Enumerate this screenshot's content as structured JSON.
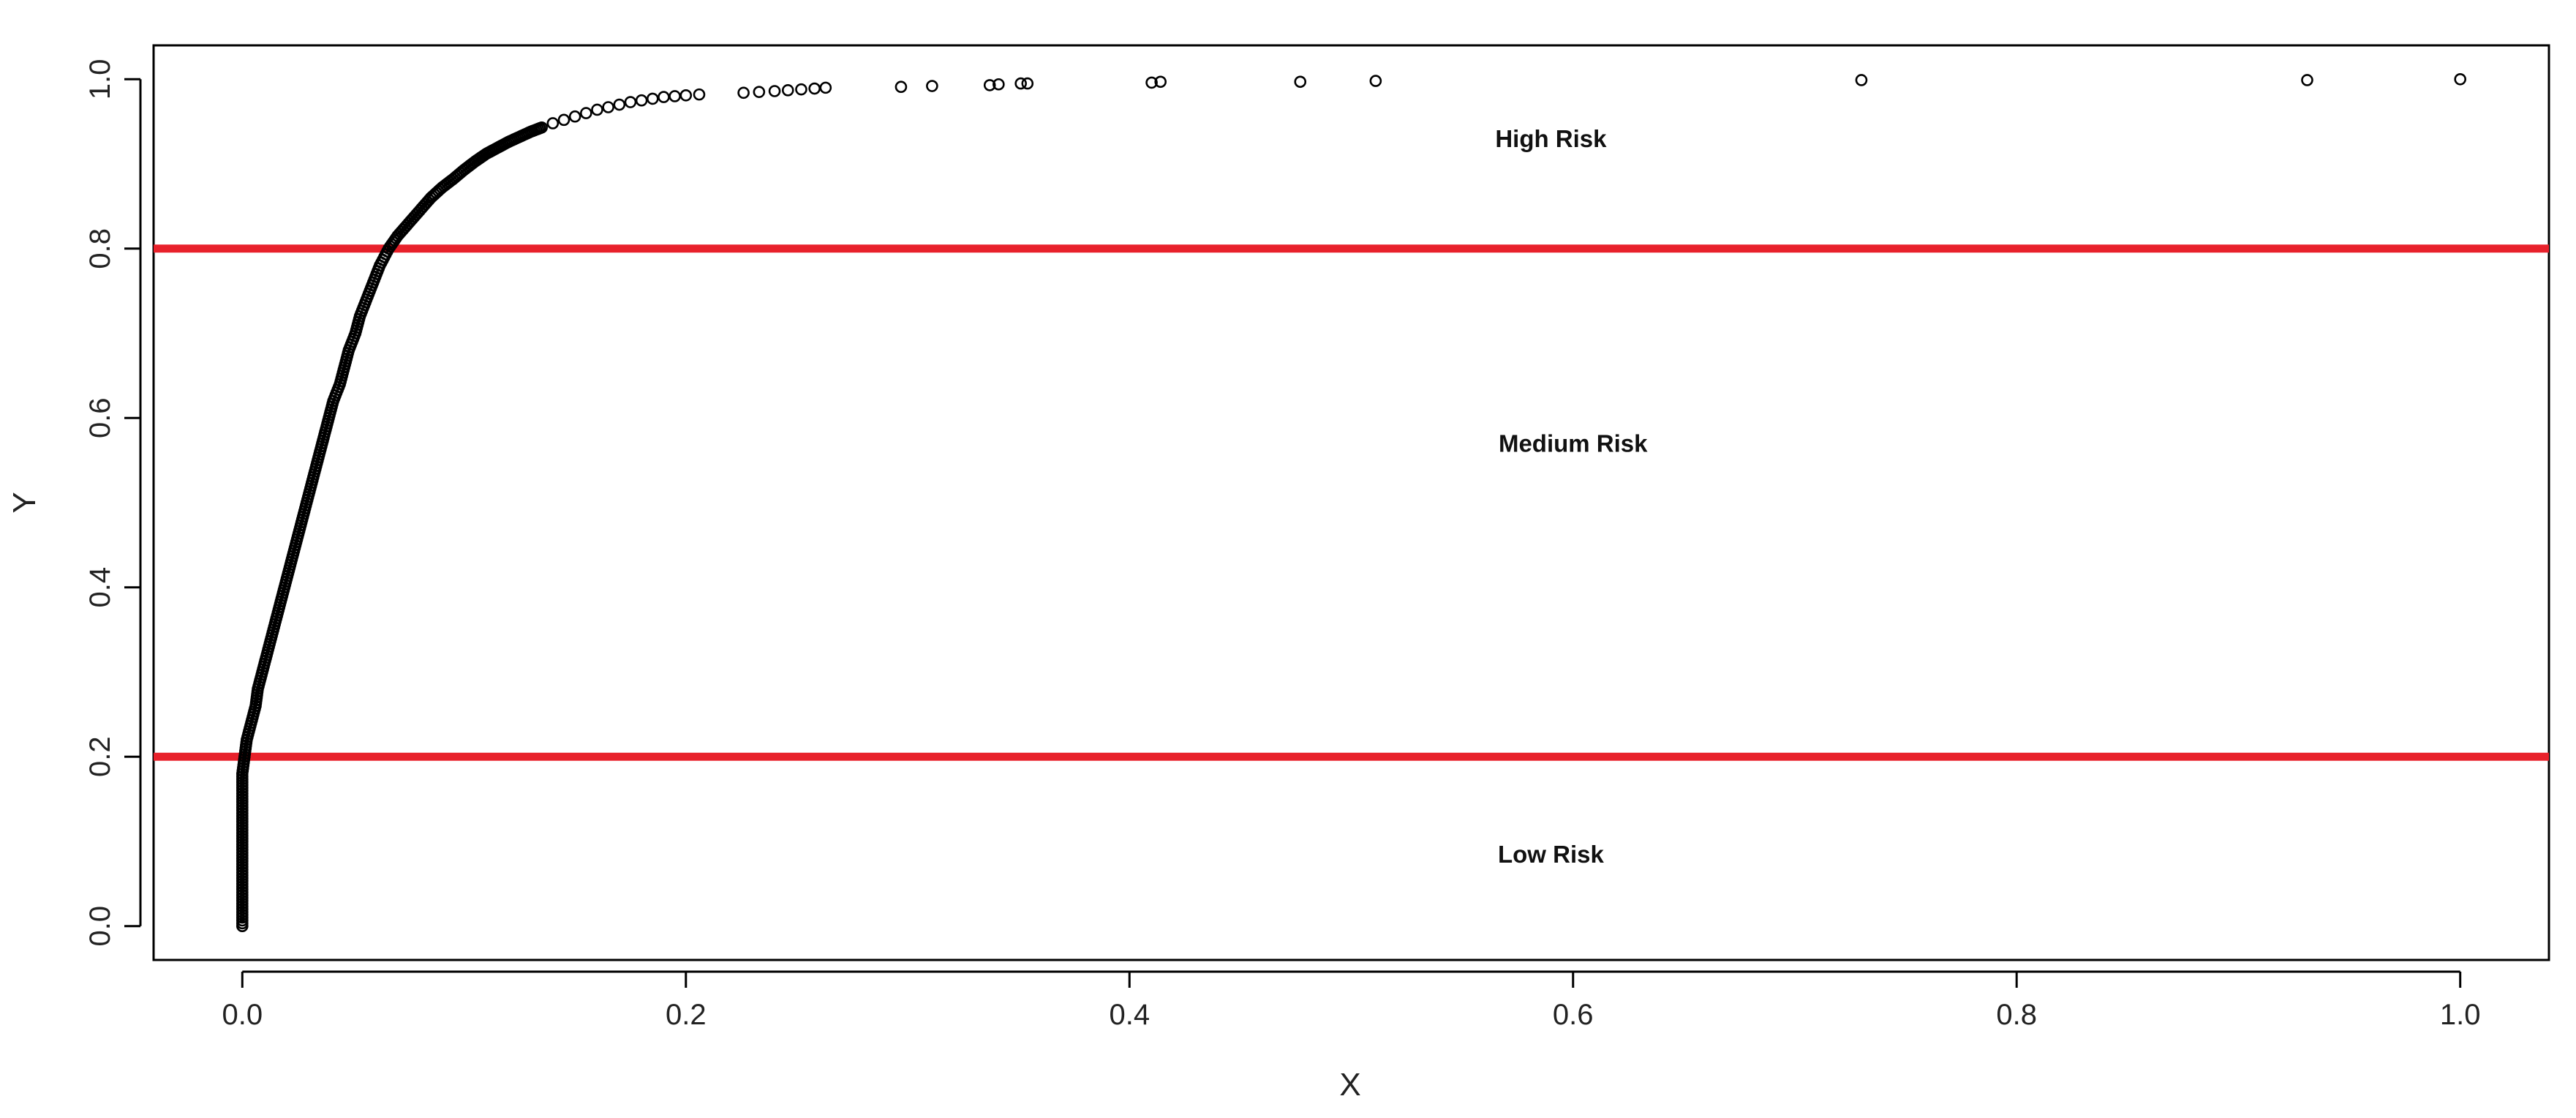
{
  "chart_data": {
    "type": "scatter",
    "title": "",
    "xlabel": "X",
    "ylabel": "Y",
    "xlim": [
      -0.04,
      1.04
    ],
    "ylim": [
      -0.04,
      1.04
    ],
    "x_ticks": [
      0.0,
      0.2,
      0.4,
      0.6,
      0.8,
      1.0
    ],
    "x_tick_labels": [
      "0.0",
      "0.2",
      "0.4",
      "0.6",
      "0.8",
      "1.0"
    ],
    "y_ticks": [
      0.0,
      0.2,
      0.4,
      0.6,
      0.8,
      1.0
    ],
    "y_tick_labels": [
      "0.0",
      "0.2",
      "0.4",
      "0.6",
      "0.8",
      "1.0"
    ],
    "grid": false,
    "legend": "none",
    "point_style": "open-circle",
    "point_color": "#000000",
    "threshold_color": "#e8212b",
    "thresholds": [
      {
        "y": 0.8
      },
      {
        "y": 0.2
      }
    ],
    "regions": [
      {
        "label": "High Risk",
        "x": 0.59,
        "y": 0.92
      },
      {
        "label": "Medium Risk",
        "x": 0.6,
        "y": 0.56
      },
      {
        "label": "Low Risk",
        "x": 0.59,
        "y": 0.075
      }
    ],
    "series": [
      {
        "points": [
          [
            0.0,
            0.0
          ],
          [
            0.0,
            0.02
          ],
          [
            0.0,
            0.04
          ],
          [
            0.0,
            0.06
          ],
          [
            0.0,
            0.08
          ],
          [
            0.0,
            0.1
          ],
          [
            0.0,
            0.12
          ],
          [
            0.0,
            0.14
          ],
          [
            0.0,
            0.16
          ],
          [
            0.0,
            0.18
          ],
          [
            0.001,
            0.2
          ],
          [
            0.002,
            0.22
          ],
          [
            0.004,
            0.24
          ],
          [
            0.006,
            0.26
          ],
          [
            0.007,
            0.28
          ],
          [
            0.009,
            0.3
          ],
          [
            0.011,
            0.32
          ],
          [
            0.013,
            0.34
          ],
          [
            0.015,
            0.36
          ],
          [
            0.017,
            0.38
          ],
          [
            0.019,
            0.4
          ],
          [
            0.021,
            0.42
          ],
          [
            0.023,
            0.44
          ],
          [
            0.025,
            0.46
          ],
          [
            0.027,
            0.48
          ],
          [
            0.029,
            0.5
          ],
          [
            0.031,
            0.52
          ],
          [
            0.033,
            0.54
          ],
          [
            0.035,
            0.56
          ],
          [
            0.037,
            0.58
          ],
          [
            0.039,
            0.6
          ],
          [
            0.041,
            0.62
          ],
          [
            0.044,
            0.64
          ],
          [
            0.046,
            0.66
          ],
          [
            0.048,
            0.68
          ],
          [
            0.051,
            0.7
          ],
          [
            0.053,
            0.72
          ],
          [
            0.056,
            0.74
          ],
          [
            0.059,
            0.76
          ],
          [
            0.062,
            0.78
          ],
          [
            0.066,
            0.8
          ],
          [
            0.07,
            0.815
          ],
          [
            0.075,
            0.83
          ],
          [
            0.08,
            0.845
          ],
          [
            0.085,
            0.86
          ],
          [
            0.09,
            0.872
          ],
          [
            0.095,
            0.882
          ],
          [
            0.1,
            0.893
          ],
          [
            0.105,
            0.903
          ],
          [
            0.11,
            0.912
          ],
          [
            0.115,
            0.919
          ],
          [
            0.12,
            0.926
          ],
          [
            0.125,
            0.932
          ],
          [
            0.13,
            0.938
          ],
          [
            0.135,
            0.943
          ],
          [
            0.14,
            0.948
          ],
          [
            0.145,
            0.952
          ],
          [
            0.15,
            0.956
          ],
          [
            0.155,
            0.96
          ],
          [
            0.16,
            0.964
          ],
          [
            0.165,
            0.967
          ],
          [
            0.17,
            0.97
          ],
          [
            0.175,
            0.973
          ],
          [
            0.18,
            0.975
          ],
          [
            0.185,
            0.977
          ],
          [
            0.19,
            0.979
          ],
          [
            0.195,
            0.98
          ],
          [
            0.2,
            0.981
          ],
          [
            0.206,
            0.982
          ],
          [
            0.226,
            0.984
          ],
          [
            0.233,
            0.985
          ],
          [
            0.24,
            0.986
          ],
          [
            0.246,
            0.987
          ],
          [
            0.252,
            0.988
          ],
          [
            0.258,
            0.989
          ],
          [
            0.263,
            0.99
          ],
          [
            0.297,
            0.991
          ],
          [
            0.311,
            0.992
          ],
          [
            0.337,
            0.993
          ],
          [
            0.341,
            0.994
          ],
          [
            0.351,
            0.995
          ],
          [
            0.354,
            0.995
          ],
          [
            0.41,
            0.996
          ],
          [
            0.414,
            0.997
          ],
          [
            0.477,
            0.997
          ],
          [
            0.511,
            0.998
          ],
          [
            0.73,
            0.999
          ],
          [
            0.931,
            0.999
          ],
          [
            1.0,
            1.0
          ]
        ]
      }
    ]
  }
}
